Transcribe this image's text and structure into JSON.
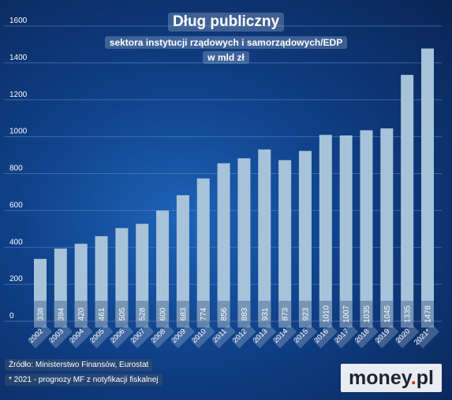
{
  "chart_data": {
    "type": "bar",
    "title": "Dług publiczny",
    "subtitle_line1": "sektora instytucji rządowych i samorządowych/EDP",
    "subtitle_line2": "w mld zł",
    "categories": [
      "2002",
      "2003",
      "2004",
      "2005",
      "2006",
      "2007",
      "2008",
      "2009",
      "2010",
      "2011",
      "2012",
      "2013",
      "2014",
      "2015",
      "2016",
      "2017",
      "2018",
      "2019",
      "2020",
      "2021*"
    ],
    "values": [
      338,
      394,
      420,
      461,
      505,
      528,
      600,
      683,
      774,
      856,
      883,
      931,
      873,
      923,
      1010,
      1007,
      1035,
      1045,
      1335,
      1478
    ],
    "ylim": [
      0,
      1600
    ],
    "yticks": [
      0,
      200,
      400,
      600,
      800,
      1000,
      1200,
      1400,
      1600
    ],
    "grid": true
  },
  "footer": {
    "source": "Źródło: Ministerstwo Finansów, Eurostat",
    "note": "* 2021 - prognozy MF z notyfikacji fiskalnej"
  },
  "brand": {
    "name": "money",
    "dot": ".",
    "tld": "pl"
  },
  "colors": {
    "bar": "#a6c3da",
    "value_box": "#6f8db0",
    "grid": "#5b86c2",
    "background": "#16509e"
  }
}
